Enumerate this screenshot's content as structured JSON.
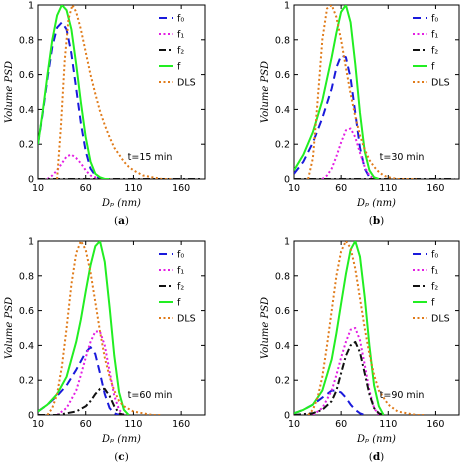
{
  "colors": {
    "f0": "#1a1adb",
    "f1": "#e31ee3",
    "f2": "#111111",
    "f": "#22ee22",
    "DLS": "#e07b1a",
    "axis": "#000000"
  },
  "legend_labels": [
    "f₀",
    "f₁",
    "f₂",
    "f",
    "DLS"
  ],
  "x_label": "Dₚ (nm)",
  "y_label": "Volume PSD",
  "chart_data": [
    {
      "type": "line",
      "panel": "(a)",
      "annotation": "t=15 min",
      "xlabel": "Dp (nm)",
      "ylabel": "Volume PSD",
      "xlim": [
        10,
        185
      ],
      "ylim": [
        0,
        1
      ],
      "xticks": [
        10,
        60,
        110,
        160
      ],
      "yticks": [
        0,
        0.2,
        0.4,
        0.6,
        0.8,
        1
      ],
      "legend_position": "top-right",
      "series": [
        {
          "name": "f0",
          "x": [
            10,
            15,
            20,
            25,
            30,
            35,
            40,
            45,
            50,
            55,
            60,
            65,
            70,
            75,
            80
          ],
          "y": [
            0.2,
            0.38,
            0.58,
            0.76,
            0.87,
            0.9,
            0.86,
            0.72,
            0.52,
            0.32,
            0.16,
            0.06,
            0.02,
            0.0,
            0.0
          ]
        },
        {
          "name": "f1",
          "x": [
            20,
            25,
            30,
            35,
            40,
            45,
            50,
            55,
            60,
            65,
            70,
            75,
            80
          ],
          "y": [
            0.0,
            0.02,
            0.05,
            0.09,
            0.13,
            0.14,
            0.12,
            0.09,
            0.05,
            0.02,
            0.01,
            0.0,
            0.0
          ]
        },
        {
          "name": "f2",
          "x": [
            10,
            180
          ],
          "y": [
            0.0,
            0.0
          ]
        },
        {
          "name": "f",
          "x": [
            10,
            15,
            20,
            25,
            30,
            35,
            40,
            45,
            50,
            55,
            60,
            65,
            70,
            75,
            80,
            85
          ],
          "y": [
            0.2,
            0.39,
            0.6,
            0.8,
            0.94,
            1.0,
            0.97,
            0.86,
            0.66,
            0.44,
            0.24,
            0.1,
            0.03,
            0.01,
            0.0,
            0.0
          ]
        },
        {
          "name": "DLS",
          "x": [
            30,
            34,
            38,
            42,
            46,
            50,
            55,
            60,
            65,
            70,
            75,
            80,
            85,
            90,
            95,
            100,
            105,
            110,
            120,
            130,
            140,
            150
          ],
          "y": [
            0.0,
            0.3,
            0.68,
            0.92,
            1.0,
            0.96,
            0.86,
            0.73,
            0.6,
            0.49,
            0.39,
            0.31,
            0.24,
            0.18,
            0.14,
            0.1,
            0.07,
            0.05,
            0.02,
            0.01,
            0.0,
            0.0
          ]
        }
      ]
    },
    {
      "type": "line",
      "panel": "(b)",
      "annotation": "t=30 min",
      "xlabel": "Dp (nm)",
      "ylabel": "Volume PSD",
      "xlim": [
        10,
        185
      ],
      "ylim": [
        0,
        1
      ],
      "xticks": [
        10,
        60,
        110,
        160
      ],
      "yticks": [
        0,
        0.2,
        0.4,
        0.6,
        0.8,
        1
      ],
      "legend_position": "top-right",
      "series": [
        {
          "name": "f0",
          "x": [
            10,
            20,
            30,
            40,
            50,
            55,
            60,
            65,
            70,
            75,
            80,
            85,
            90,
            95
          ],
          "y": [
            0.03,
            0.1,
            0.21,
            0.35,
            0.52,
            0.64,
            0.71,
            0.7,
            0.58,
            0.38,
            0.18,
            0.06,
            0.01,
            0.0
          ]
        },
        {
          "name": "f1",
          "x": [
            40,
            45,
            50,
            55,
            60,
            65,
            70,
            75,
            80,
            85,
            90,
            95
          ],
          "y": [
            0.0,
            0.02,
            0.06,
            0.13,
            0.21,
            0.28,
            0.29,
            0.24,
            0.15,
            0.07,
            0.02,
            0.0
          ]
        },
        {
          "name": "f2",
          "x": [
            10,
            180
          ],
          "y": [
            0.0,
            0.0
          ]
        },
        {
          "name": "f",
          "x": [
            10,
            20,
            30,
            40,
            50,
            55,
            60,
            65,
            70,
            75,
            80,
            85,
            90,
            95,
            100
          ],
          "y": [
            0.05,
            0.14,
            0.27,
            0.45,
            0.7,
            0.84,
            0.96,
            1.0,
            0.9,
            0.66,
            0.38,
            0.16,
            0.05,
            0.01,
            0.0
          ]
        },
        {
          "name": "DLS",
          "x": [
            25,
            30,
            35,
            40,
            45,
            50,
            55,
            60,
            65,
            70,
            75,
            80,
            85,
            90,
            95,
            100,
            105,
            110,
            120,
            130,
            140
          ],
          "y": [
            0.0,
            0.12,
            0.45,
            0.8,
            0.98,
            1.0,
            0.93,
            0.8,
            0.64,
            0.49,
            0.36,
            0.25,
            0.17,
            0.11,
            0.07,
            0.04,
            0.02,
            0.01,
            0.0,
            0.0,
            0.0
          ]
        }
      ]
    },
    {
      "type": "line",
      "panel": "(c)",
      "annotation": "t=60 min",
      "xlabel": "Dp (nm)",
      "ylabel": "Volume PSD",
      "xlim": [
        10,
        185
      ],
      "ylim": [
        0,
        1
      ],
      "xticks": [
        10,
        60,
        110,
        160
      ],
      "yticks": [
        0,
        0.2,
        0.4,
        0.6,
        0.8,
        1
      ],
      "legend_position": "top-right",
      "series": [
        {
          "name": "f0",
          "x": [
            10,
            20,
            30,
            40,
            50,
            55,
            60,
            65,
            70,
            75,
            80,
            85,
            90,
            95
          ],
          "y": [
            0.02,
            0.06,
            0.11,
            0.17,
            0.26,
            0.31,
            0.36,
            0.39,
            0.35,
            0.24,
            0.12,
            0.04,
            0.01,
            0.0
          ]
        },
        {
          "name": "f1",
          "x": [
            30,
            40,
            50,
            55,
            60,
            65,
            70,
            75,
            80,
            85,
            90,
            95,
            100
          ],
          "y": [
            0.0,
            0.04,
            0.14,
            0.23,
            0.33,
            0.42,
            0.48,
            0.48,
            0.4,
            0.25,
            0.11,
            0.03,
            0.0
          ]
        },
        {
          "name": "f2",
          "x": [
            10,
            30,
            40,
            50,
            60,
            65,
            70,
            75,
            80,
            85,
            90,
            95,
            100
          ],
          "y": [
            0.0,
            0.0,
            0.01,
            0.02,
            0.05,
            0.08,
            0.12,
            0.15,
            0.15,
            0.11,
            0.05,
            0.01,
            0.0
          ]
        },
        {
          "name": "f",
          "x": [
            10,
            20,
            30,
            40,
            50,
            55,
            60,
            65,
            70,
            75,
            80,
            85,
            90,
            95,
            100,
            105
          ],
          "y": [
            0.02,
            0.06,
            0.12,
            0.22,
            0.42,
            0.55,
            0.71,
            0.86,
            0.97,
            1.0,
            0.88,
            0.62,
            0.34,
            0.13,
            0.03,
            0.0
          ]
        },
        {
          "name": "DLS",
          "x": [
            20,
            25,
            30,
            35,
            40,
            45,
            50,
            55,
            60,
            65,
            70,
            75,
            80,
            85,
            90,
            95,
            100,
            110,
            120,
            130,
            140
          ],
          "y": [
            0.0,
            0.04,
            0.12,
            0.28,
            0.5,
            0.75,
            0.93,
            1.0,
            0.95,
            0.82,
            0.65,
            0.48,
            0.33,
            0.22,
            0.14,
            0.08,
            0.05,
            0.02,
            0.01,
            0.0,
            0.0
          ]
        }
      ]
    },
    {
      "type": "line",
      "panel": "(d)",
      "annotation": "t=90 min",
      "xlabel": "Dp (nm)",
      "ylabel": "Volume PSD",
      "xlim": [
        10,
        185
      ],
      "ylim": [
        0,
        1
      ],
      "xticks": [
        10,
        60,
        110,
        160
      ],
      "yticks": [
        0,
        0.2,
        0.4,
        0.6,
        0.8,
        1
      ],
      "legend_position": "top-right",
      "series": [
        {
          "name": "f0",
          "x": [
            10,
            20,
            30,
            40,
            45,
            50,
            55,
            60,
            65,
            70,
            75,
            80,
            85
          ],
          "y": [
            0.01,
            0.03,
            0.06,
            0.1,
            0.12,
            0.14,
            0.14,
            0.13,
            0.1,
            0.06,
            0.03,
            0.01,
            0.0
          ]
        },
        {
          "name": "f1",
          "x": [
            30,
            40,
            50,
            55,
            60,
            65,
            70,
            75,
            80,
            85,
            90,
            95,
            100
          ],
          "y": [
            0.0,
            0.04,
            0.14,
            0.23,
            0.33,
            0.42,
            0.49,
            0.5,
            0.43,
            0.29,
            0.14,
            0.04,
            0.0
          ]
        },
        {
          "name": "f2",
          "x": [
            10,
            30,
            40,
            50,
            55,
            60,
            65,
            70,
            75,
            80,
            85,
            90,
            95,
            100,
            105
          ],
          "y": [
            0.0,
            0.01,
            0.03,
            0.08,
            0.14,
            0.24,
            0.34,
            0.4,
            0.42,
            0.36,
            0.24,
            0.12,
            0.04,
            0.01,
            0.0
          ]
        },
        {
          "name": "f",
          "x": [
            10,
            20,
            30,
            40,
            50,
            55,
            60,
            65,
            70,
            75,
            80,
            85,
            90,
            95,
            100,
            105
          ],
          "y": [
            0.01,
            0.03,
            0.06,
            0.14,
            0.32,
            0.47,
            0.64,
            0.81,
            0.95,
            1.0,
            0.91,
            0.68,
            0.4,
            0.17,
            0.05,
            0.0
          ]
        },
        {
          "name": "DLS",
          "x": [
            25,
            30,
            35,
            40,
            45,
            50,
            55,
            60,
            65,
            70,
            75,
            80,
            85,
            90,
            95,
            100,
            110,
            120,
            130,
            140,
            150
          ],
          "y": [
            0.0,
            0.03,
            0.1,
            0.22,
            0.4,
            0.6,
            0.8,
            0.94,
            1.0,
            0.96,
            0.84,
            0.67,
            0.5,
            0.35,
            0.23,
            0.14,
            0.06,
            0.02,
            0.01,
            0.0,
            0.0
          ]
        }
      ]
    }
  ]
}
